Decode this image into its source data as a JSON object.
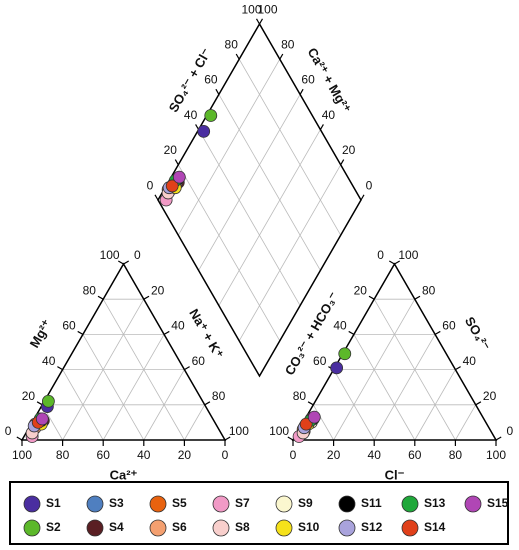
{
  "chart_data": {
    "type": "piper",
    "grid": true,
    "cation_triangle": {
      "bottom": {
        "label": "Ca²⁺",
        "ticks": [
          0,
          20,
          40,
          60,
          80,
          100
        ]
      },
      "left": {
        "label": "Mg²⁺",
        "ticks": [
          0,
          20,
          40,
          60,
          80,
          100
        ]
      },
      "right": {
        "label": "Na⁺ + K⁺",
        "ticks": [
          0,
          20,
          40,
          60,
          80,
          100
        ]
      }
    },
    "anion_triangle": {
      "bottom": {
        "label": "Cl⁻",
        "ticks": [
          0,
          20,
          40,
          60,
          80,
          100
        ]
      },
      "left": {
        "label": "CO₃²⁻ + HCO₃⁻",
        "ticks": [
          0,
          20,
          40,
          60,
          80,
          100
        ]
      },
      "right": {
        "label": "SO₄²⁻",
        "ticks": [
          0,
          20,
          40,
          60,
          80,
          100
        ]
      }
    },
    "diamond": {
      "left": {
        "label": "SO₄²⁻ + Cl⁻",
        "ticks": [
          0,
          20,
          40,
          60,
          80,
          100
        ]
      },
      "right": {
        "label": "Ca²⁺ + Mg²⁺",
        "ticks": [
          0,
          20,
          40,
          60,
          80,
          100
        ]
      }
    },
    "series": [
      {
        "name": "S1",
        "color": "#4a2ea0",
        "mg": 19,
        "na_k": 3,
        "so4": 41,
        "cl": 1
      },
      {
        "name": "S2",
        "color": "#5cb82a",
        "mg": 22,
        "na_k": 2,
        "so4": 49,
        "cl": 1
      },
      {
        "name": "S3",
        "color": "#4f7fc0",
        "mg": 8,
        "na_k": 3,
        "so4": 8,
        "cl": 2
      },
      {
        "name": "S4",
        "color": "#5a1f23",
        "mg": 11,
        "na_k": 5,
        "so4": 12,
        "cl": 3
      },
      {
        "name": "S5",
        "color": "#e8620f",
        "mg": 9,
        "na_k": 2,
        "so4": 6,
        "cl": 2
      },
      {
        "name": "S6",
        "color": "#f4a070",
        "mg": 7,
        "na_k": 3,
        "so4": 5,
        "cl": 3
      },
      {
        "name": "S7",
        "color": "#f19ac6",
        "mg": 2,
        "na_k": 4,
        "so4": 2,
        "cl": 2
      },
      {
        "name": "S8",
        "color": "#f8cfcc",
        "mg": 4,
        "na_k": 3,
        "so4": 4,
        "cl": 3
      },
      {
        "name": "S9",
        "color": "#fbf7cf",
        "mg": 10,
        "na_k": 4,
        "so4": 10,
        "cl": 4
      },
      {
        "name": "S10",
        "color": "#f5e11a",
        "mg": 9,
        "na_k": 5,
        "so4": 9,
        "cl": 3
      },
      {
        "name": "S11",
        "color": "#000000",
        "mg": 11,
        "na_k": 4,
        "so4": 12,
        "cl": 4
      },
      {
        "name": "S12",
        "color": "#a9a3dc",
        "mg": 8,
        "na_k": 2,
        "so4": 7,
        "cl": 2
      },
      {
        "name": "S13",
        "color": "#1fa83a",
        "mg": 12,
        "na_k": 3,
        "so4": 11,
        "cl": 3
      },
      {
        "name": "S14",
        "color": "#e0401a",
        "mg": 10,
        "na_k": 3,
        "so4": 9,
        "cl": 2
      },
      {
        "name": "S15",
        "color": "#b046b5",
        "mg": 12,
        "na_k": 4,
        "so4": 13,
        "cl": 4
      }
    ]
  }
}
